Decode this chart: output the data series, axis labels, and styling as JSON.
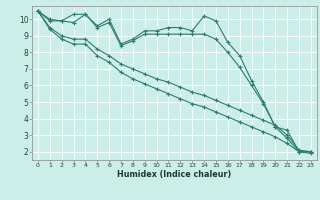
{
  "bg_color": "#cceee8",
  "grid_color": "#ffffff",
  "line_color": "#2e7d6e",
  "xlabel": "Humidex (Indice chaleur)",
  "xlim": [
    -0.5,
    23.5
  ],
  "ylim": [
    1.5,
    10.8
  ],
  "yticks": [
    2,
    3,
    4,
    5,
    6,
    7,
    8,
    9,
    10
  ],
  "xticks": [
    0,
    1,
    2,
    3,
    4,
    5,
    6,
    7,
    8,
    9,
    10,
    11,
    12,
    13,
    14,
    15,
    16,
    17,
    18,
    19,
    20,
    21,
    22,
    23
  ],
  "series": [
    [
      10.5,
      10.0,
      9.9,
      10.3,
      10.3,
      9.6,
      10.0,
      8.5,
      8.8,
      9.3,
      9.3,
      9.5,
      9.5,
      9.3,
      10.2,
      9.9,
      8.6,
      7.8,
      6.3,
      5.0,
      3.5,
      2.8,
      2.0,
      2.0
    ],
    [
      10.5,
      9.9,
      9.9,
      9.8,
      10.3,
      9.5,
      9.8,
      8.4,
      8.7,
      9.1,
      9.1,
      9.1,
      9.1,
      9.1,
      9.1,
      8.8,
      8.0,
      7.1,
      6.0,
      4.9,
      3.5,
      3.3,
      2.0,
      2.0
    ],
    [
      10.5,
      9.5,
      9.0,
      8.8,
      8.8,
      8.2,
      7.8,
      7.3,
      7.0,
      6.7,
      6.4,
      6.2,
      5.9,
      5.6,
      5.4,
      5.1,
      4.8,
      4.5,
      4.2,
      3.9,
      3.6,
      3.0,
      2.1,
      2.0
    ],
    [
      10.5,
      9.4,
      8.8,
      8.5,
      8.5,
      7.8,
      7.4,
      6.8,
      6.4,
      6.1,
      5.8,
      5.5,
      5.2,
      4.9,
      4.7,
      4.4,
      4.1,
      3.8,
      3.5,
      3.2,
      2.9,
      2.5,
      2.0,
      1.9
    ]
  ]
}
